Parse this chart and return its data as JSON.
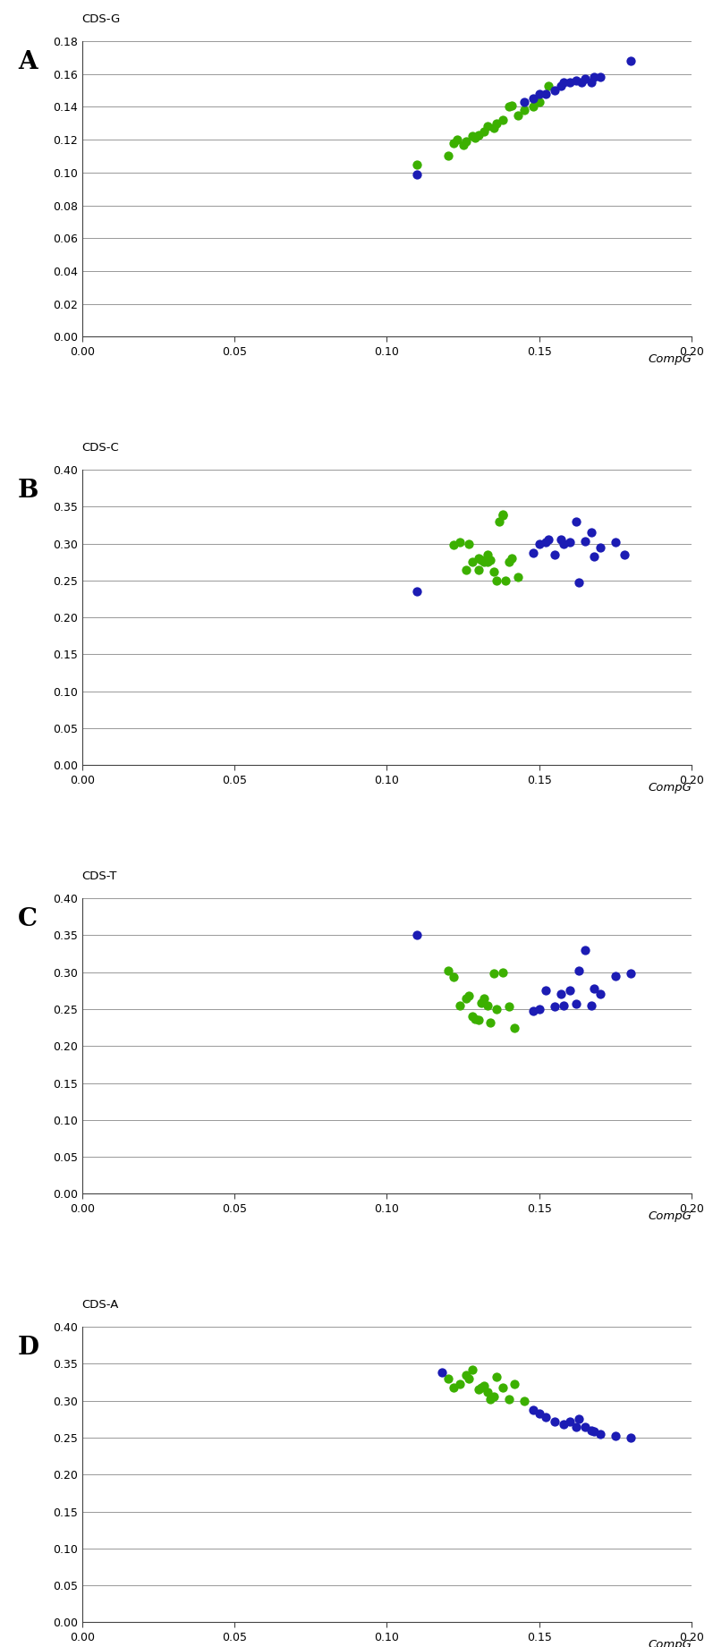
{
  "panels": [
    {
      "label": "A",
      "ylabel": "CDS-G",
      "ylim": [
        0.0,
        0.18
      ],
      "yticks": [
        0.0,
        0.02,
        0.04,
        0.06,
        0.08,
        0.1,
        0.12,
        0.14,
        0.16,
        0.18
      ],
      "green_x": [
        0.11,
        0.12,
        0.122,
        0.123,
        0.125,
        0.126,
        0.128,
        0.129,
        0.13,
        0.132,
        0.133,
        0.135,
        0.136,
        0.138,
        0.14,
        0.141,
        0.143,
        0.145,
        0.148,
        0.15,
        0.153
      ],
      "green_y": [
        0.105,
        0.11,
        0.118,
        0.12,
        0.117,
        0.119,
        0.122,
        0.121,
        0.123,
        0.125,
        0.128,
        0.127,
        0.13,
        0.132,
        0.14,
        0.141,
        0.135,
        0.138,
        0.14,
        0.143,
        0.153
      ],
      "blue_x": [
        0.11,
        0.145,
        0.148,
        0.15,
        0.152,
        0.155,
        0.157,
        0.158,
        0.16,
        0.162,
        0.164,
        0.165,
        0.167,
        0.168,
        0.17,
        0.18
      ],
      "blue_y": [
        0.099,
        0.143,
        0.145,
        0.148,
        0.148,
        0.15,
        0.153,
        0.155,
        0.155,
        0.156,
        0.155,
        0.157,
        0.155,
        0.158,
        0.158,
        0.168
      ]
    },
    {
      "label": "B",
      "ylabel": "CDS-C",
      "ylim": [
        0.0,
        0.4
      ],
      "yticks": [
        0.0,
        0.05,
        0.1,
        0.15,
        0.2,
        0.25,
        0.3,
        0.35,
        0.4
      ],
      "green_x": [
        0.122,
        0.124,
        0.126,
        0.127,
        0.128,
        0.13,
        0.13,
        0.131,
        0.132,
        0.133,
        0.133,
        0.134,
        0.135,
        0.136,
        0.137,
        0.138,
        0.138,
        0.139,
        0.14,
        0.141,
        0.143
      ],
      "green_y": [
        0.298,
        0.302,
        0.265,
        0.3,
        0.275,
        0.265,
        0.28,
        0.278,
        0.275,
        0.275,
        0.285,
        0.278,
        0.262,
        0.25,
        0.33,
        0.34,
        0.338,
        0.25,
        0.275,
        0.28,
        0.255
      ],
      "blue_x": [
        0.11,
        0.148,
        0.15,
        0.152,
        0.153,
        0.155,
        0.157,
        0.158,
        0.16,
        0.162,
        0.163,
        0.165,
        0.167,
        0.168,
        0.17,
        0.175,
        0.178
      ],
      "blue_y": [
        0.235,
        0.288,
        0.3,
        0.302,
        0.305,
        0.285,
        0.305,
        0.3,
        0.302,
        0.33,
        0.248,
        0.303,
        0.315,
        0.283,
        0.295,
        0.302,
        0.285
      ]
    },
    {
      "label": "C",
      "ylabel": "CDS-T",
      "ylim": [
        0.0,
        0.4
      ],
      "yticks": [
        0.0,
        0.05,
        0.1,
        0.15,
        0.2,
        0.25,
        0.3,
        0.35,
        0.4
      ],
      "green_x": [
        0.12,
        0.122,
        0.124,
        0.126,
        0.127,
        0.128,
        0.129,
        0.13,
        0.131,
        0.132,
        0.133,
        0.134,
        0.135,
        0.136,
        0.138,
        0.14,
        0.142
      ],
      "green_y": [
        0.302,
        0.293,
        0.255,
        0.265,
        0.268,
        0.24,
        0.237,
        0.235,
        0.258,
        0.265,
        0.255,
        0.232,
        0.298,
        0.25,
        0.3,
        0.253,
        0.225
      ],
      "blue_x": [
        0.11,
        0.148,
        0.15,
        0.152,
        0.155,
        0.157,
        0.158,
        0.16,
        0.162,
        0.163,
        0.165,
        0.167,
        0.168,
        0.17,
        0.175,
        0.18
      ],
      "blue_y": [
        0.35,
        0.248,
        0.25,
        0.275,
        0.253,
        0.27,
        0.255,
        0.275,
        0.257,
        0.302,
        0.33,
        0.255,
        0.278,
        0.27,
        0.295,
        0.298
      ]
    },
    {
      "label": "D",
      "ylabel": "CDS-A",
      "ylim": [
        0.0,
        0.4
      ],
      "yticks": [
        0.0,
        0.05,
        0.1,
        0.15,
        0.2,
        0.25,
        0.3,
        0.35,
        0.4
      ],
      "green_x": [
        0.12,
        0.122,
        0.124,
        0.126,
        0.127,
        0.128,
        0.13,
        0.131,
        0.132,
        0.133,
        0.134,
        0.135,
        0.136,
        0.138,
        0.14,
        0.142,
        0.145
      ],
      "green_y": [
        0.33,
        0.318,
        0.322,
        0.335,
        0.33,
        0.342,
        0.315,
        0.318,
        0.32,
        0.312,
        0.302,
        0.305,
        0.332,
        0.318,
        0.302,
        0.322,
        0.3
      ],
      "blue_x": [
        0.118,
        0.148,
        0.15,
        0.152,
        0.155,
        0.158,
        0.16,
        0.162,
        0.163,
        0.165,
        0.167,
        0.168,
        0.17,
        0.175,
        0.18
      ],
      "blue_y": [
        0.338,
        0.288,
        0.283,
        0.278,
        0.272,
        0.268,
        0.272,
        0.265,
        0.275,
        0.265,
        0.26,
        0.258,
        0.255,
        0.252,
        0.25
      ]
    }
  ],
  "xlim": [
    0.0,
    0.2
  ],
  "xticks": [
    0.0,
    0.05,
    0.1,
    0.15,
    0.2
  ],
  "xlabel": "CompG",
  "green_color": "#3CB000",
  "blue_color": "#1C1CB4",
  "marker_size": 55,
  "background_color": "#ffffff",
  "grid_color": "#888888",
  "label_fontsize": 20,
  "tick_fontsize": 9,
  "axis_label_fontsize": 9.5
}
